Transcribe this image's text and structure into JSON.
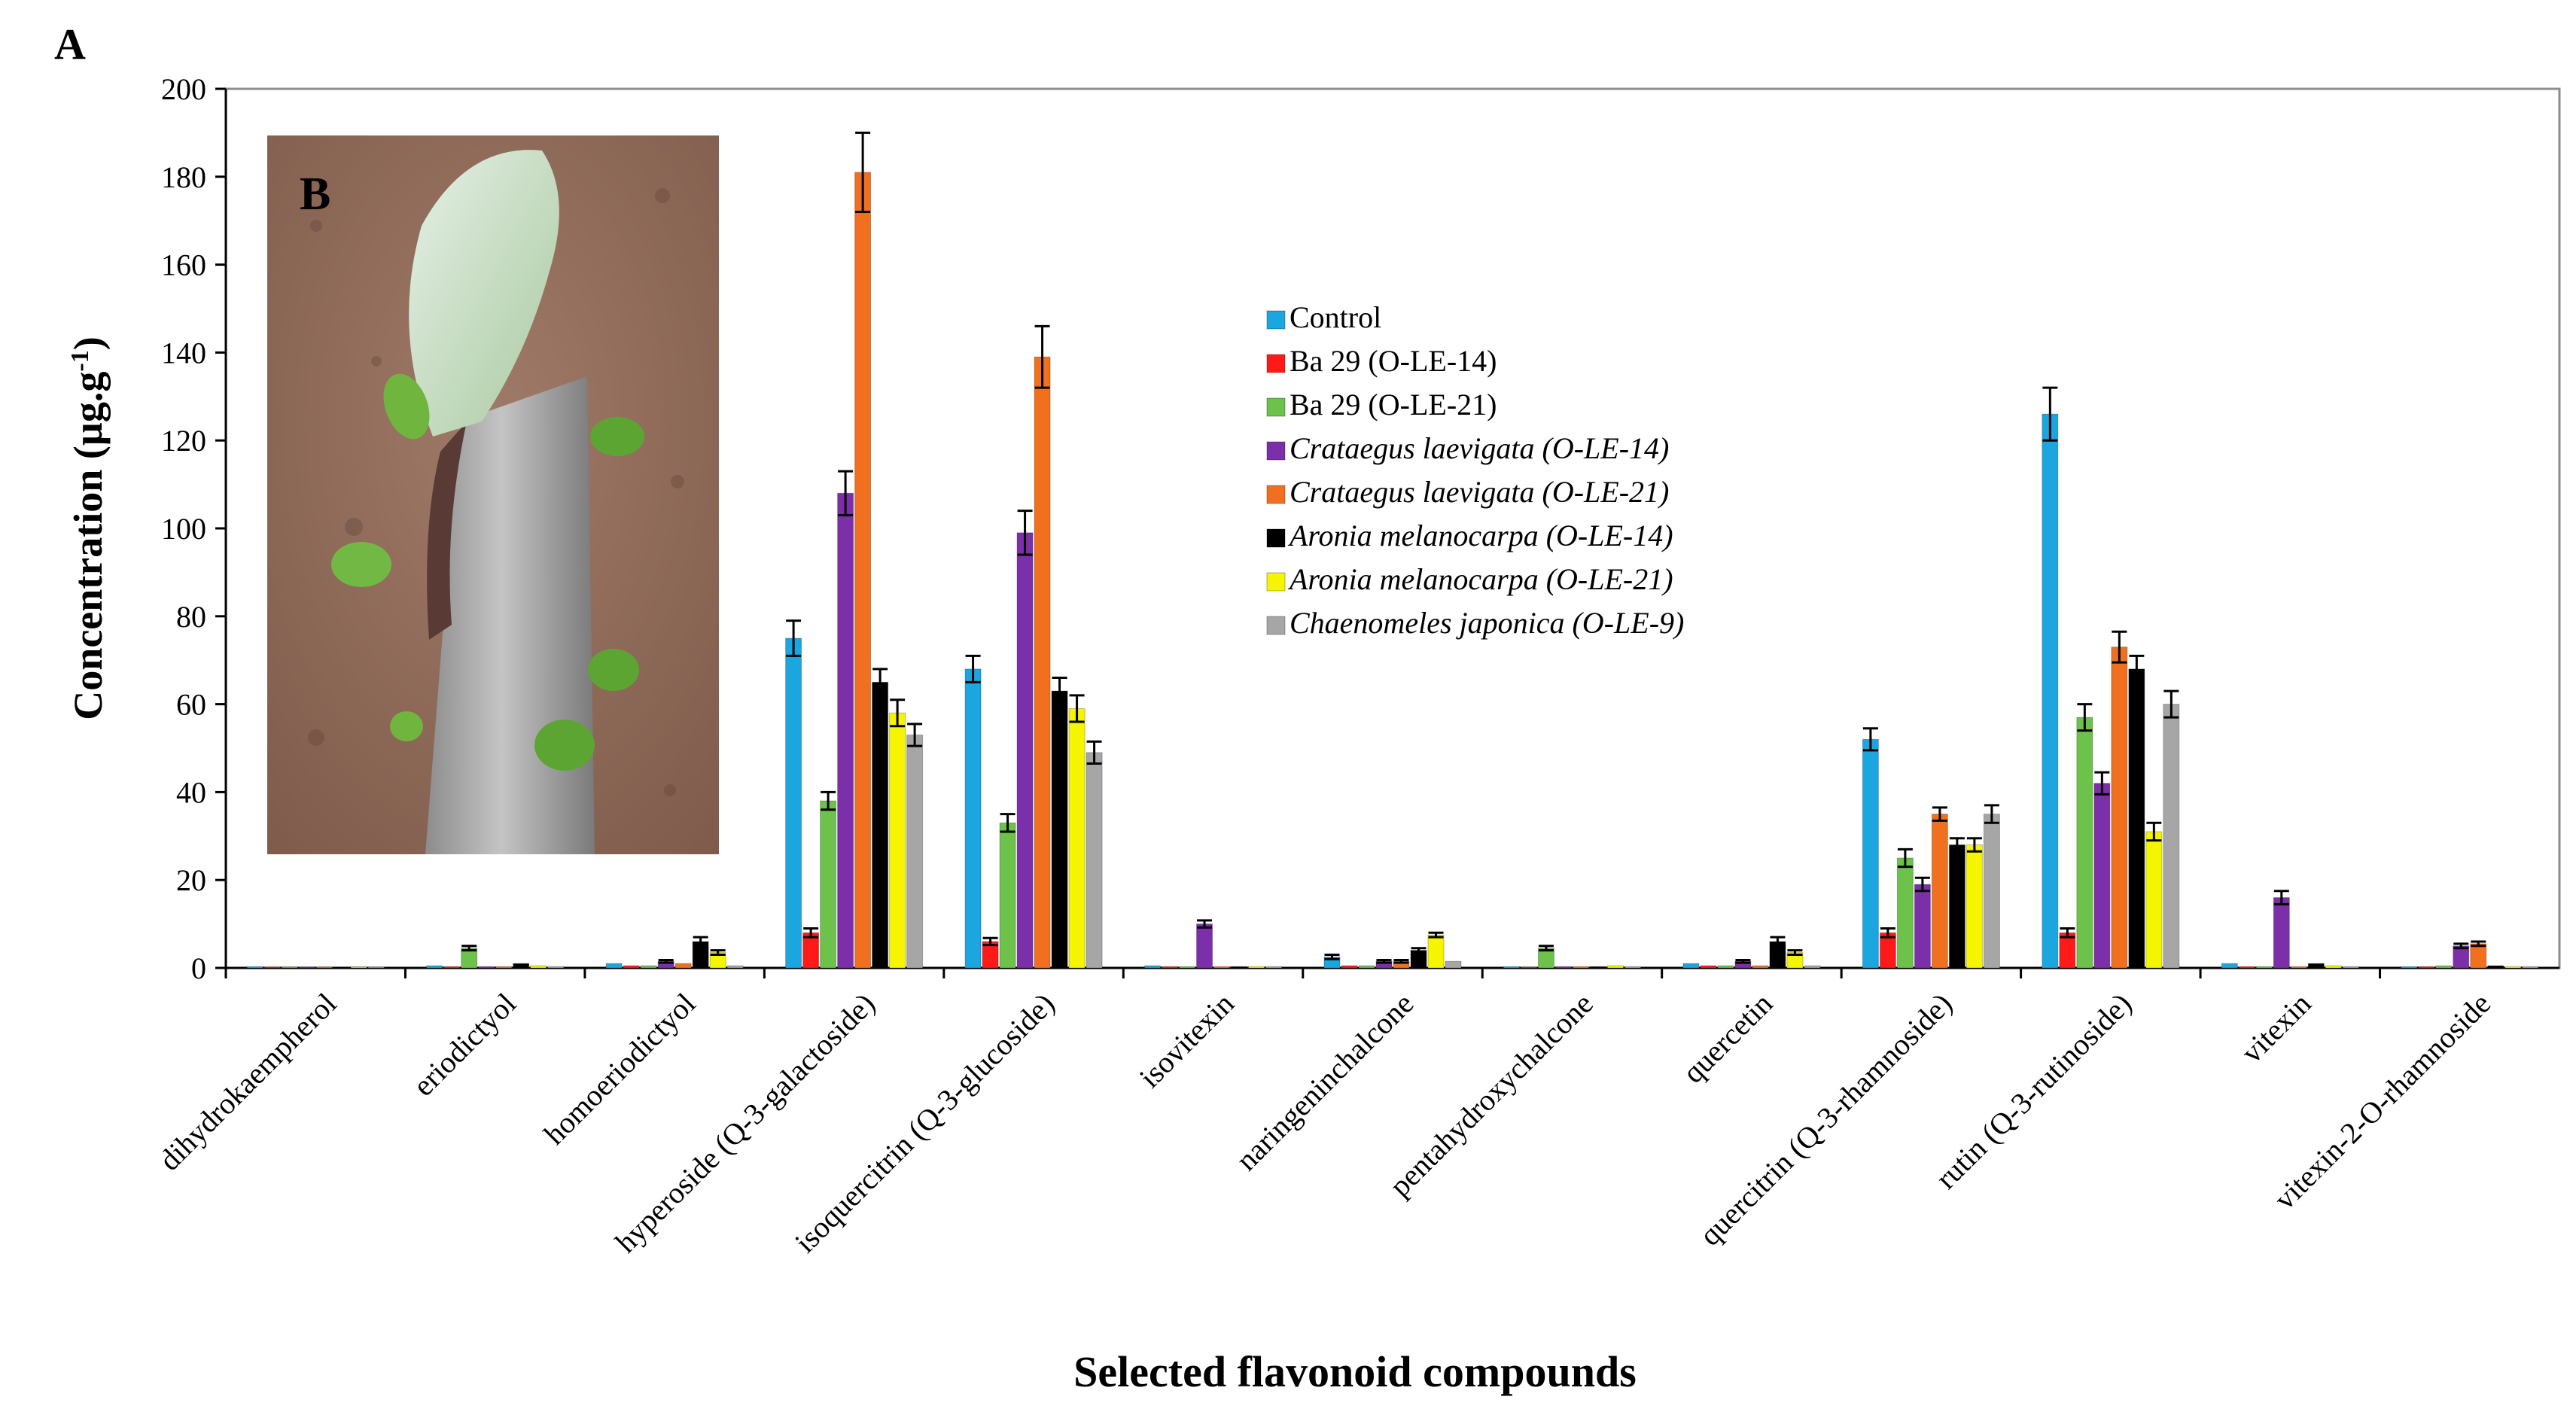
{
  "panel_labels": {
    "a": "A",
    "b": "B"
  },
  "inset_image": {
    "label": "B",
    "description_icon": "plant-shoot-photo"
  },
  "chart_data": {
    "type": "bar",
    "title": "",
    "xlabel": "Selected flavonoid compounds",
    "ylabel": "Concentration (µg.g",
    "ylabel_sup": "-1",
    "ylabel_close": ")",
    "ylim": [
      0,
      200
    ],
    "yticks": [
      "0",
      "20",
      "40",
      "60",
      "80",
      "100",
      "120",
      "140",
      "160",
      "180",
      "200"
    ],
    "grid": false,
    "legend_position": "upper-middle",
    "categories": [
      "dihydrokaempherol",
      "eriodictyol",
      "homoeriodictyol",
      "hyperoside (Q-3-galactoside)",
      "isoquercitrin (Q-3-glucoside)",
      "isovitexin",
      "naringeninchalcone",
      "pentahydroxychalcone",
      "quercetin",
      "quercitrin (Q-3-rhamnoside)",
      "rutin (Q-3-rutinoside)",
      "vitexin",
      "vitexin-2-O-rhamnoside"
    ],
    "series": [
      {
        "name": "Control",
        "italic": false,
        "color": "#1BA6E0",
        "values": [
          0.3,
          0.5,
          1.0,
          75,
          68,
          0.5,
          2.5,
          0.3,
          1.0,
          52,
          126,
          1.0,
          0.3
        ],
        "errors": [
          0,
          0,
          0,
          4,
          3,
          0,
          0.5,
          0,
          0,
          2.5,
          6,
          0,
          0
        ]
      },
      {
        "name": "Ba 29 (O-LE-14)",
        "italic": false,
        "color": "#FF1A1A",
        "values": [
          0.2,
          0.3,
          0.5,
          8,
          6,
          0.3,
          0.5,
          0.2,
          0.5,
          8,
          8,
          0.3,
          0.3
        ],
        "errors": [
          0,
          0,
          0,
          1,
          0.8,
          0,
          0,
          0,
          0,
          1,
          1,
          0,
          0
        ]
      },
      {
        "name": "Ba 29 (O-LE-21)",
        "italic": false,
        "color": "#6CC24A",
        "values": [
          0.2,
          4.5,
          0.5,
          38,
          33,
          0.3,
          0.5,
          4.5,
          0.5,
          25,
          57,
          0.3,
          0.5
        ],
        "errors": [
          0,
          0.5,
          0,
          2,
          2,
          0,
          0,
          0.5,
          0,
          2,
          3,
          0,
          0
        ]
      },
      {
        "name": "Crataegus laevigata (O-LE-14)",
        "italic": true,
        "color": "#7B2FA8",
        "values": [
          0.2,
          0.3,
          1.5,
          108,
          99,
          10,
          1.5,
          0.3,
          1.5,
          19,
          42,
          16,
          5
        ],
        "errors": [
          0,
          0,
          0.3,
          5,
          5,
          0.8,
          0.3,
          0,
          0.3,
          1.5,
          2.5,
          1.5,
          0.5
        ]
      },
      {
        "name": "Crataegus laevigata (O-LE-21)",
        "italic": true,
        "color": "#F07020",
        "values": [
          0.2,
          0.3,
          1.0,
          181,
          139,
          0.3,
          1.5,
          0.3,
          0.5,
          35,
          73,
          0.3,
          5.5
        ],
        "errors": [
          0,
          0,
          0,
          9,
          7,
          0,
          0.3,
          0,
          0,
          1.5,
          3.5,
          0,
          0.5
        ]
      },
      {
        "name": "Aronia melanocarpa (O-LE-14)",
        "italic": true,
        "color": "#000000",
        "values": [
          0.2,
          1.0,
          6,
          65,
          63,
          0.3,
          4,
          0.3,
          6,
          28,
          68,
          1.0,
          0.5
        ],
        "errors": [
          0,
          0,
          1,
          3,
          3,
          0,
          0.5,
          0,
          1,
          1.5,
          3,
          0,
          0
        ]
      },
      {
        "name": "Aronia melanocarpa (O-LE-21)",
        "italic": true,
        "color": "#F5F500",
        "values": [
          0.2,
          0.5,
          3.5,
          58,
          59,
          0.3,
          7.5,
          0.5,
          3.5,
          28,
          31,
          0.5,
          0.3
        ],
        "errors": [
          0,
          0,
          0.5,
          3,
          3,
          0,
          0.5,
          0,
          0.5,
          1.5,
          2,
          0,
          0
        ]
      },
      {
        "name": "Chaenomeles japonica (O-LE-9)",
        "italic": true,
        "color": "#A6A6A6",
        "values": [
          0.2,
          0.3,
          0.5,
          53,
          49,
          0.3,
          1.5,
          0.3,
          0.5,
          35,
          60,
          0.3,
          0.3
        ],
        "errors": [
          0,
          0,
          0,
          2.5,
          2.5,
          0,
          0,
          0,
          0,
          2,
          3,
          0,
          0
        ]
      }
    ]
  },
  "colors": {
    "photo_soil": "#8E6A5A",
    "photo_stem": "#A9A9A9",
    "photo_bud": "#CFE0D0",
    "photo_leaf": "#5DAA3A"
  }
}
